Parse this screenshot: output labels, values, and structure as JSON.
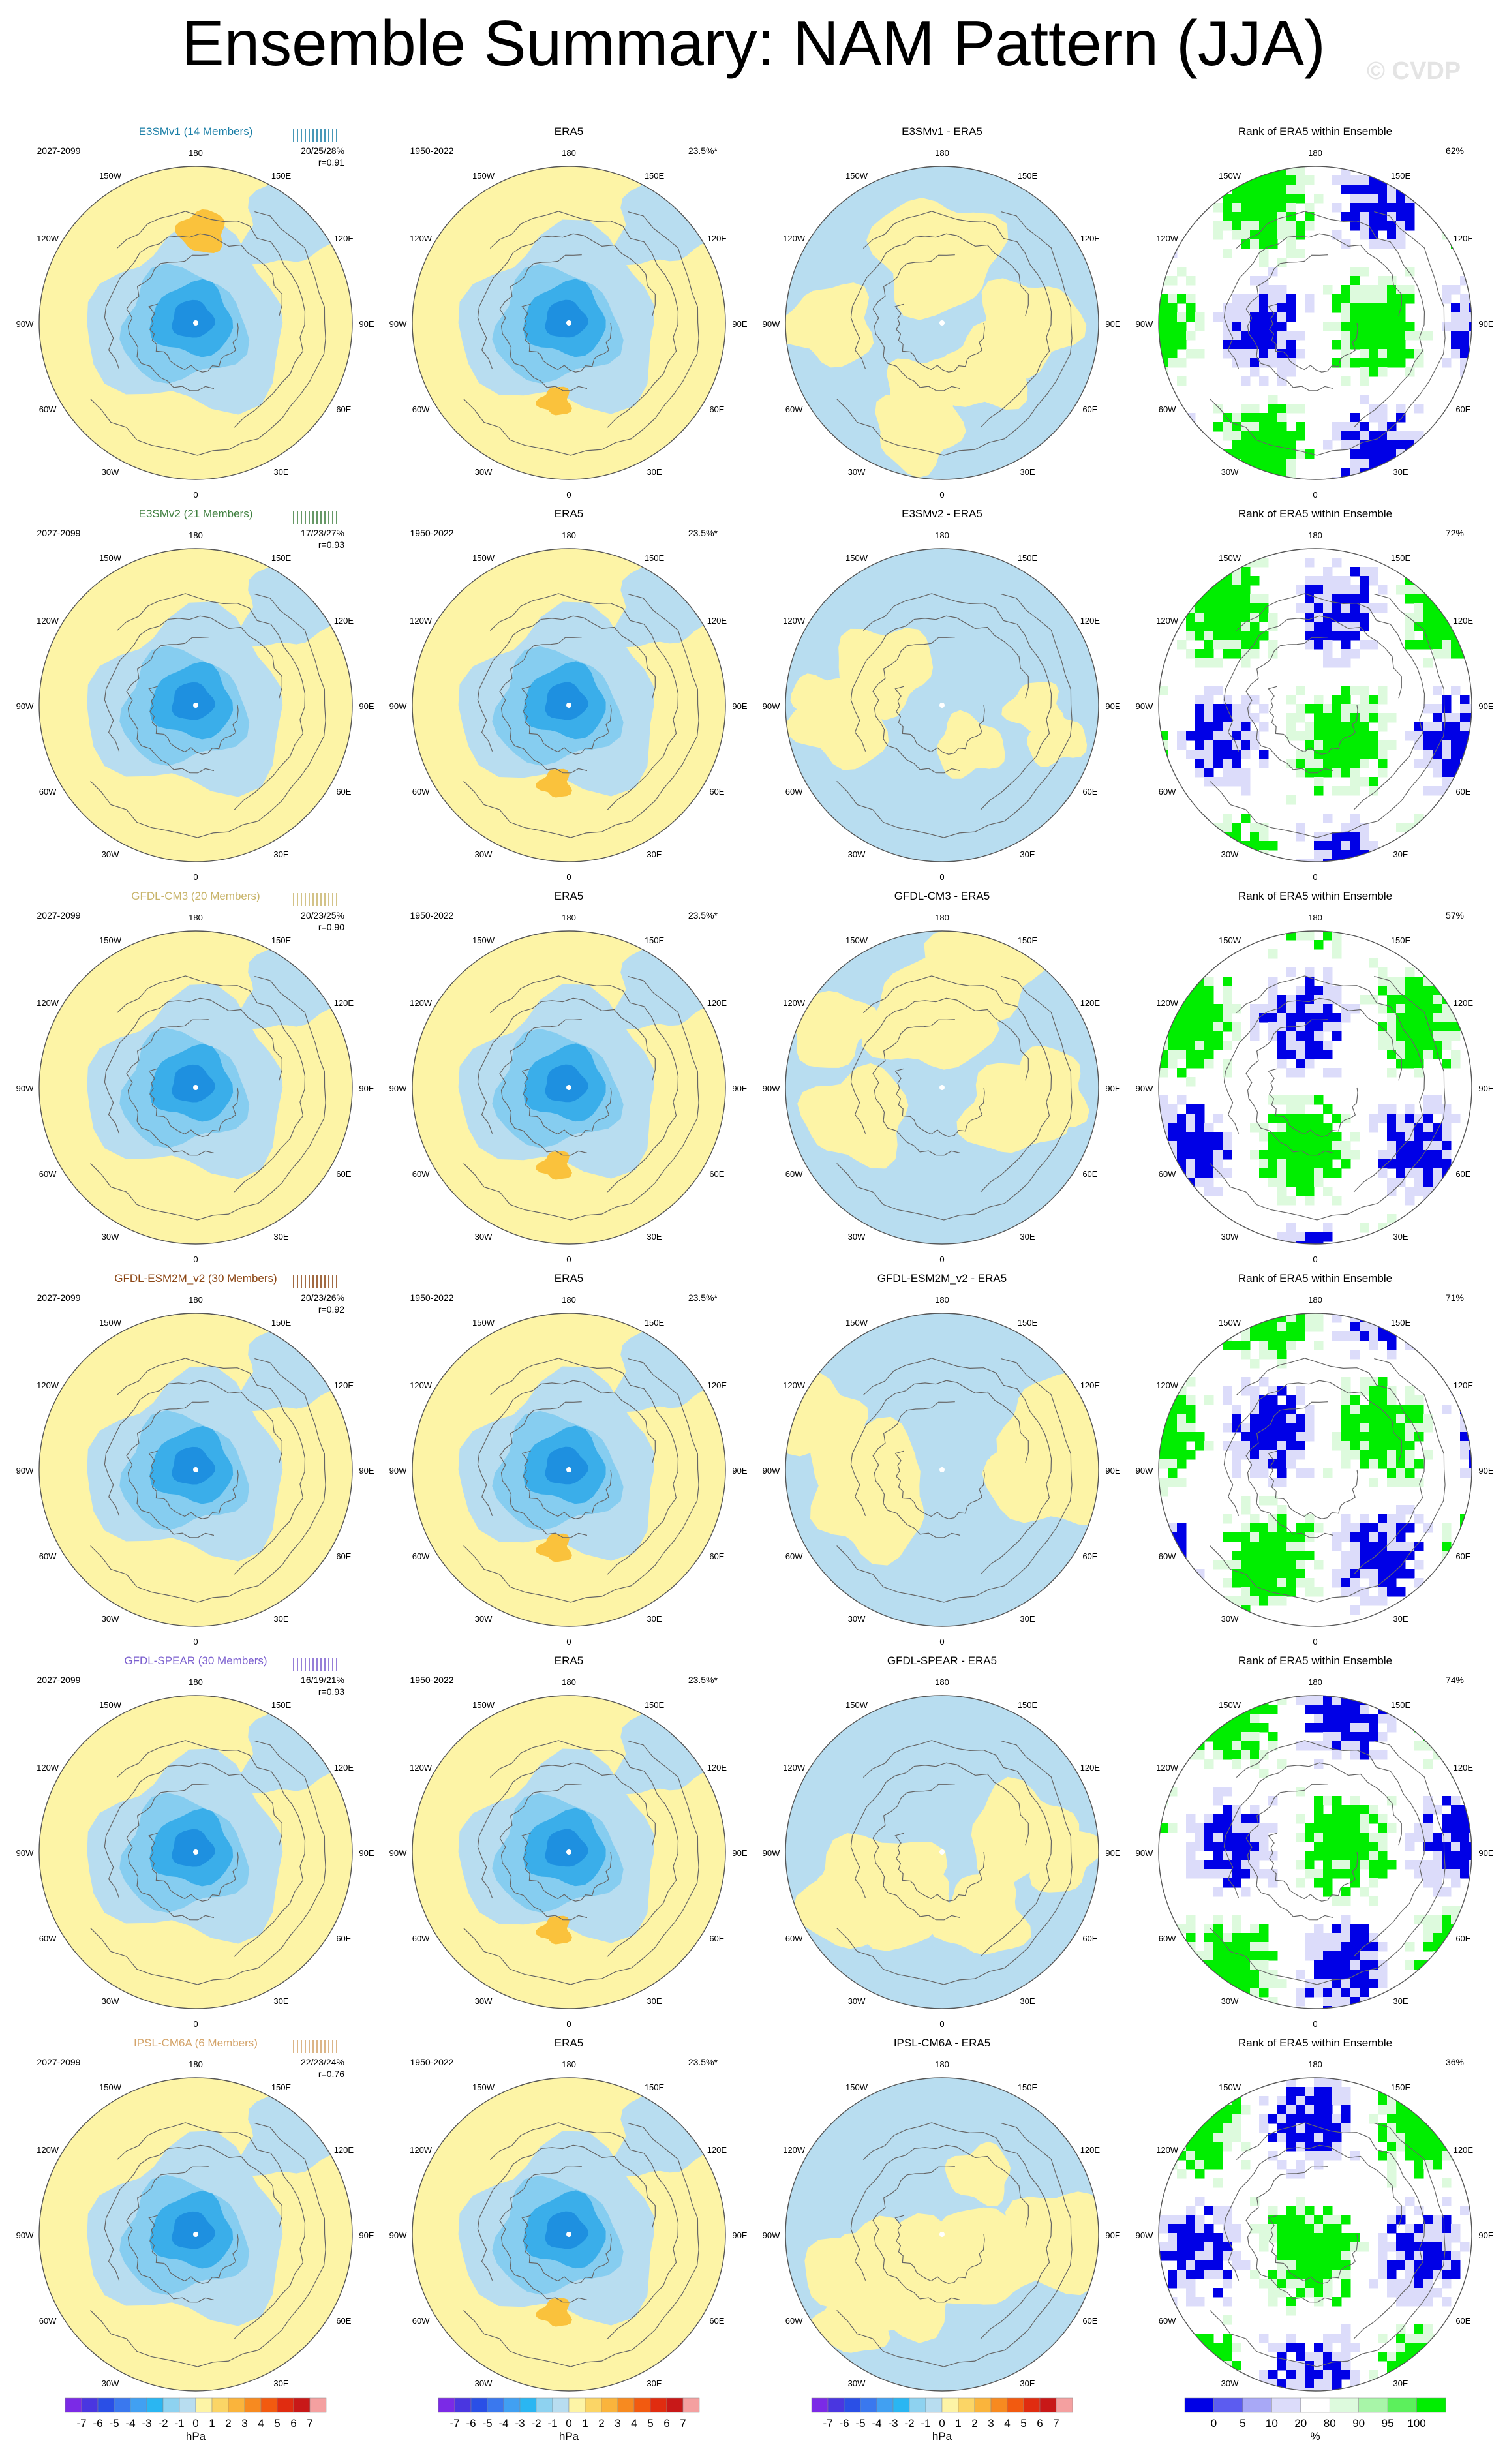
{
  "title": "Ensemble Summary: NAM Pattern (JJA)",
  "watermark": "© CVDP",
  "colors": {
    "ocean_blue": "#b8ddf0",
    "yellow": "#fdf4a6",
    "b2": "#86cdf0",
    "b3": "#3aaeea",
    "b4": "#1e90e0",
    "b5": "#1c6fd8",
    "orange": "#fac23c",
    "rank_green": "#00ee00",
    "rank_blue": "#0000e6",
    "rank_lav": "#dcdcfa",
    "rank_pale_green": "#ddfadd"
  },
  "column_headers": {
    "era5": "ERA5",
    "rank": "Rank of ERA5 within Ensemble"
  },
  "periods": {
    "model": "2027-2099",
    "obs": "1950-2022"
  },
  "obs_variance": "23.5%*",
  "lon_labels": [
    "180",
    "150E",
    "120E",
    "90E",
    "60E",
    "30E",
    "0",
    "30W",
    "60W",
    "90W",
    "120W",
    "150W"
  ],
  "rows": [
    {
      "model": "E3SMv1 (14 Members)",
      "model_color": "#1a7ea6",
      "stats": "20/25/28%",
      "r": "r=0.91",
      "diff_title": "E3SMv1 - ERA5",
      "rank_pct": "62%"
    },
    {
      "model": "E3SMv2 (21 Members)",
      "model_color": "#3f7f3f",
      "stats": "17/23/27%",
      "r": "r=0.93",
      "diff_title": "E3SMv2 - ERA5",
      "rank_pct": "72%"
    },
    {
      "model": "GFDL-CM3 (20 Members)",
      "model_color": "#c8b46a",
      "stats": "20/23/25%",
      "r": "r=0.90",
      "diff_title": "GFDL-CM3 - ERA5",
      "rank_pct": "57%"
    },
    {
      "model": "GFDL-ESM2M_v2 (30 Members)",
      "model_color": "#8b4513",
      "stats": "20/23/26%",
      "r": "r=0.92",
      "diff_title": "GFDL-ESM2M_v2 - ERA5",
      "rank_pct": "71%"
    },
    {
      "model": "GFDL-SPEAR (30 Members)",
      "model_color": "#7b5fcf",
      "stats": "16/19/21%",
      "r": "r=0.93",
      "diff_title": "GFDL-SPEAR - ERA5",
      "rank_pct": "74%"
    },
    {
      "model": "IPSL-CM6A (6 Members)",
      "model_color": "#d4a46a",
      "stats": "22/23/24%",
      "r": "r=0.76",
      "diff_title": "IPSL-CM6A - ERA5",
      "rank_pct": "36%"
    }
  ],
  "colorbar_hpa": {
    "unit": "hPa",
    "labels": [
      "-7",
      "-6",
      "-5",
      "-4",
      "-3",
      "-2",
      "-1",
      "0",
      "1",
      "2",
      "3",
      "4",
      "5",
      "6",
      "7"
    ],
    "colors": [
      "#7b2ae6",
      "#4a36e0",
      "#2a4fe6",
      "#3a78ee",
      "#41a0f2",
      "#2ab6f2",
      "#8ed2f0",
      "#b8ddf0",
      "#fdf4a6",
      "#fbd566",
      "#fab43c",
      "#f78a20",
      "#f25a10",
      "#e02c10",
      "#c81818",
      "#f4a0a0"
    ]
  },
  "colorbar_rank": {
    "unit": "%",
    "labels": [
      "0",
      "5",
      "10",
      "20",
      "80",
      "90",
      "95",
      "100"
    ],
    "colors": [
      "#0000e6",
      "#5c5cf0",
      "#a8a8f6",
      "#dcdcfa",
      "#ffffff",
      "#ddfadd",
      "#a8f5a8",
      "#5cf05c",
      "#00ee00"
    ]
  },
  "chart_data": {
    "type": "heatmap",
    "description_free": true,
    "panels_per_row": [
      "model ensemble mean",
      "ERA5",
      "model - ERA5",
      "rank of ERA5 within ensemble"
    ],
    "row_count": 6,
    "pattern_units": "hPa",
    "rank_units": "%"
  }
}
